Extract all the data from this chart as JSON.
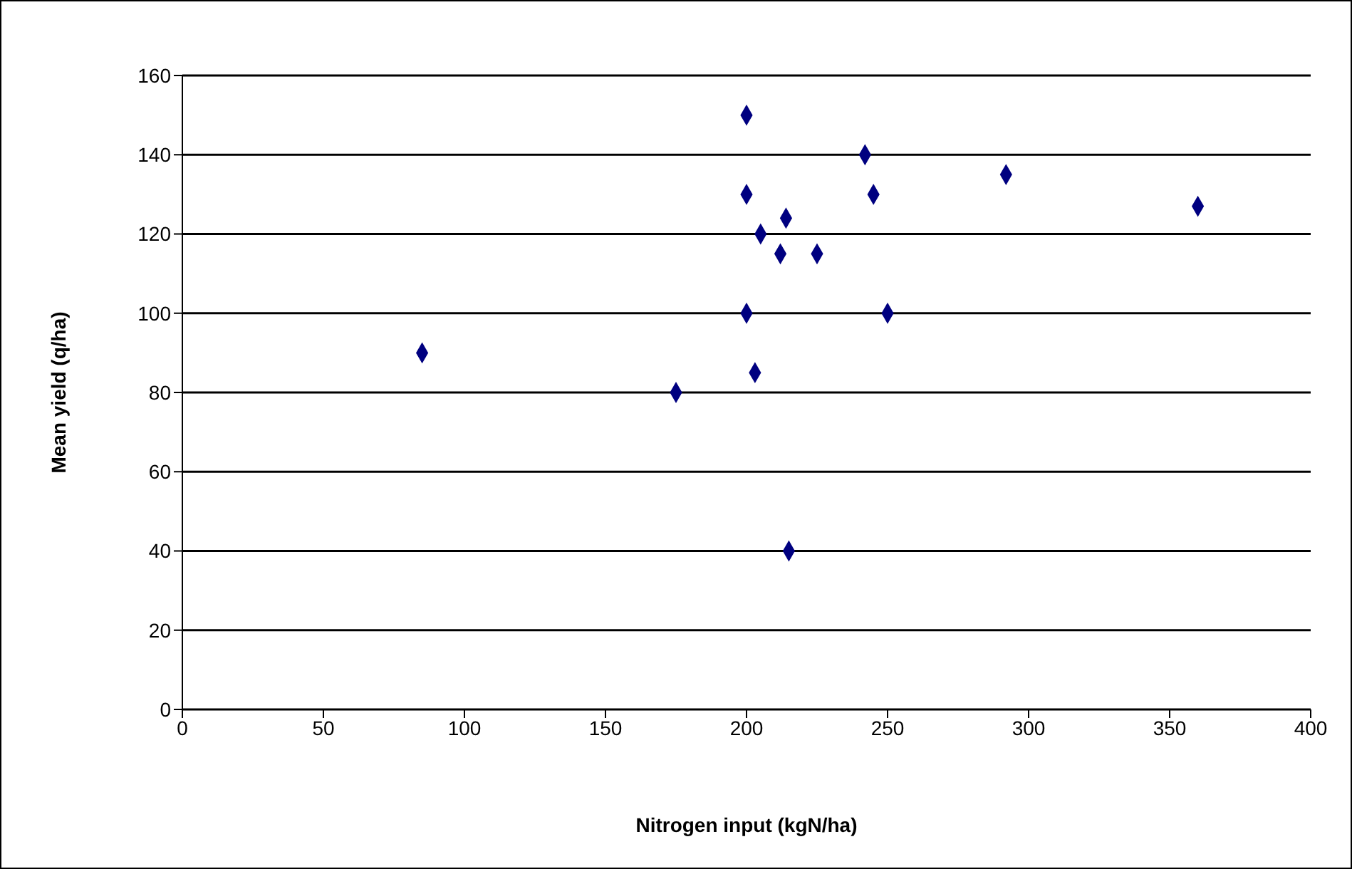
{
  "chart_data": {
    "type": "scatter",
    "xlabel": "Nitrogen input (kgN/ha)",
    "ylabel": "Mean yield (q/ha)",
    "x": [
      85,
      175,
      200,
      200,
      200,
      205,
      203,
      214,
      212,
      225,
      215,
      242,
      245,
      250,
      292,
      360
    ],
    "values": [
      90,
      80,
      150,
      130,
      100,
      120,
      85,
      124,
      115,
      115,
      40,
      140,
      130,
      100,
      135,
      127
    ],
    "color": "#000080",
    "marker": "diamond",
    "grid": "y",
    "legend": false,
    "xlim": [
      0,
      400
    ],
    "xticks": [
      0,
      50,
      100,
      150,
      200,
      250,
      300,
      350,
      400
    ],
    "ylim": [
      0,
      160
    ],
    "yticks": [
      0,
      20,
      40,
      60,
      80,
      100,
      120,
      140,
      160
    ]
  }
}
